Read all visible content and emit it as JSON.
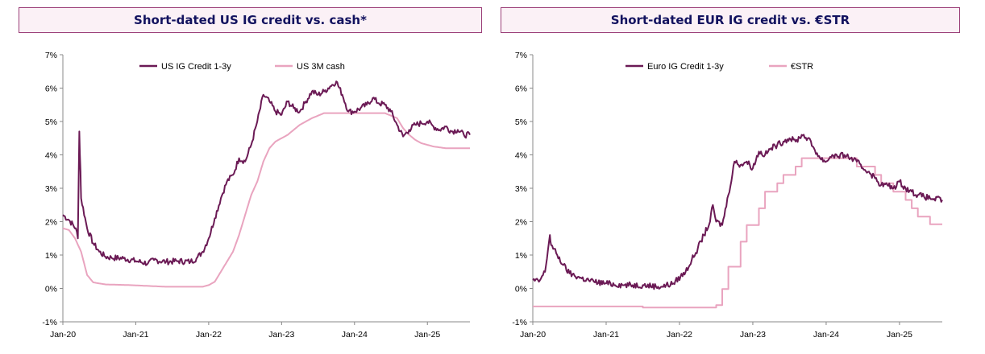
{
  "chart_data": [
    {
      "type": "line",
      "title": "Short-dated US IG credit vs. cash*",
      "xlabel": "",
      "ylabel": "",
      "ylim": [
        -0.01,
        0.07
      ],
      "y_ticks": [
        "7%",
        "6%",
        "5%",
        "4%",
        "3%",
        "2%",
        "1%",
        "0%",
        "-1%"
      ],
      "x_ticks": [
        "Jan-20",
        "Jan-21",
        "Jan-22",
        "Jan-23",
        "Jan-24",
        "Jan-25"
      ],
      "xlim": [
        "2020-01",
        "2025-08"
      ],
      "legend_position": "top-center",
      "grid": false,
      "series": [
        {
          "name": "US IG Credit 1-3y",
          "color": "#6b1a55",
          "points": [
            [
              "2020-01",
              2.2
            ],
            [
              "2020-02",
              2.05
            ],
            [
              "2020-03-05",
              1.8
            ],
            [
              "2020-03-15",
              1.5
            ],
            [
              "2020-03-22",
              4.7
            ],
            [
              "2020-03-28",
              3.5
            ],
            [
              "2020-04",
              2.7
            ],
            [
              "2020-05",
              1.8
            ],
            [
              "2020-06",
              1.35
            ],
            [
              "2020-07",
              1.1
            ],
            [
              "2020-08",
              0.95
            ],
            [
              "2020-09",
              0.92
            ],
            [
              "2020-11",
              0.9
            ],
            [
              "2021-01",
              0.82
            ],
            [
              "2021-03",
              0.75
            ],
            [
              "2021-04",
              0.85
            ],
            [
              "2021-06",
              0.8
            ],
            [
              "2021-08",
              0.82
            ],
            [
              "2021-10",
              0.8
            ],
            [
              "2021-11",
              0.9
            ],
            [
              "2021-12",
              1.1
            ],
            [
              "2022-01",
              1.5
            ],
            [
              "2022-02",
              2.1
            ],
            [
              "2022-03",
              2.7
            ],
            [
              "2022-04",
              3.2
            ],
            [
              "2022-05",
              3.4
            ],
            [
              "2022-06",
              3.9
            ],
            [
              "2022-07",
              3.8
            ],
            [
              "2022-08",
              4.3
            ],
            [
              "2022-09",
              5.0
            ],
            [
              "2022-10",
              5.8
            ],
            [
              "2022-11",
              5.6
            ],
            [
              "2022-12",
              5.3
            ],
            [
              "2023-01",
              5.2
            ],
            [
              "2023-02",
              5.6
            ],
            [
              "2023-03",
              5.4
            ],
            [
              "2023-04",
              5.3
            ],
            [
              "2023-05",
              5.6
            ],
            [
              "2023-06",
              5.9
            ],
            [
              "2023-07",
              5.8
            ],
            [
              "2023-08",
              5.9
            ],
            [
              "2023-09",
              6.05
            ],
            [
              "2023-10",
              6.2
            ],
            [
              "2023-11",
              5.8
            ],
            [
              "2023-12",
              5.3
            ],
            [
              "2024-01",
              5.3
            ],
            [
              "2024-02",
              5.4
            ],
            [
              "2024-03",
              5.5
            ],
            [
              "2024-04",
              5.7
            ],
            [
              "2024-05",
              5.55
            ],
            [
              "2024-06",
              5.5
            ],
            [
              "2024-07",
              5.3
            ],
            [
              "2024-08",
              4.9
            ],
            [
              "2024-09",
              4.55
            ],
            [
              "2024-10",
              4.75
            ],
            [
              "2024-11",
              4.9
            ],
            [
              "2024-12",
              4.95
            ],
            [
              "2025-01",
              5.0
            ],
            [
              "2025-02",
              4.85
            ],
            [
              "2025-03",
              4.75
            ],
            [
              "2025-04",
              4.85
            ],
            [
              "2025-05",
              4.7
            ],
            [
              "2025-06",
              4.75
            ],
            [
              "2025-07",
              4.6
            ],
            [
              "2025-08",
              4.6
            ]
          ]
        },
        {
          "name": "US 3M cash",
          "color": "#e9a4bf",
          "points": [
            [
              "2020-01",
              1.8
            ],
            [
              "2020-02",
              1.75
            ],
            [
              "2020-03",
              1.5
            ],
            [
              "2020-04",
              1.1
            ],
            [
              "2020-05",
              0.4
            ],
            [
              "2020-06",
              0.18
            ],
            [
              "2020-08",
              0.12
            ],
            [
              "2020-12",
              0.1
            ],
            [
              "2021-06",
              0.05
            ],
            [
              "2021-12",
              0.05
            ],
            [
              "2022-01",
              0.1
            ],
            [
              "2022-02",
              0.2
            ],
            [
              "2022-03",
              0.5
            ],
            [
              "2022-04",
              0.8
            ],
            [
              "2022-05",
              1.1
            ],
            [
              "2022-06",
              1.6
            ],
            [
              "2022-07",
              2.2
            ],
            [
              "2022-08",
              2.8
            ],
            [
              "2022-09",
              3.2
            ],
            [
              "2022-10",
              3.8
            ],
            [
              "2022-11",
              4.2
            ],
            [
              "2022-12",
              4.4
            ],
            [
              "2023-02",
              4.6
            ],
            [
              "2023-04",
              4.9
            ],
            [
              "2023-06",
              5.1
            ],
            [
              "2023-08",
              5.25
            ],
            [
              "2024-01",
              5.25
            ],
            [
              "2024-06",
              5.25
            ],
            [
              "2024-08",
              5.1
            ],
            [
              "2024-09",
              4.8
            ],
            [
              "2024-10",
              4.6
            ],
            [
              "2024-11",
              4.45
            ],
            [
              "2024-12",
              4.35
            ],
            [
              "2025-02",
              4.25
            ],
            [
              "2025-04",
              4.2
            ],
            [
              "2025-08",
              4.2
            ]
          ]
        }
      ]
    },
    {
      "type": "line",
      "title": "Short-dated EUR IG credit vs. €STR",
      "xlabel": "",
      "ylabel": "",
      "ylim": [
        -0.01,
        0.07
      ],
      "y_ticks": [
        "7%",
        "6%",
        "5%",
        "4%",
        "3%",
        "2%",
        "1%",
        "0%",
        "-1%"
      ],
      "x_ticks": [
        "Jan-20",
        "Jan-21",
        "Jan-22",
        "Jan-23",
        "Jan-24",
        "Jan-25"
      ],
      "xlim": [
        "2020-01",
        "2025-08"
      ],
      "legend_position": "top-center",
      "grid": false,
      "series": [
        {
          "name": "Euro IG Credit 1-3y",
          "color": "#6b1a55",
          "points": [
            [
              "2020-01",
              0.25
            ],
            [
              "2020-02",
              0.2
            ],
            [
              "2020-03",
              0.5
            ],
            [
              "2020-03-25",
              1.6
            ],
            [
              "2020-04",
              1.3
            ],
            [
              "2020-05",
              1.0
            ],
            [
              "2020-06",
              0.7
            ],
            [
              "2020-07",
              0.45
            ],
            [
              "2020-09",
              0.3
            ],
            [
              "2020-11",
              0.2
            ],
            [
              "2021-01",
              0.15
            ],
            [
              "2021-04",
              0.1
            ],
            [
              "2021-07",
              0.1
            ],
            [
              "2021-10",
              0.05
            ],
            [
              "2021-12",
              0.15
            ],
            [
              "2022-02",
              0.5
            ],
            [
              "2022-04",
              1.2
            ],
            [
              "2022-06",
              2.0
            ],
            [
              "2022-06-15",
              2.5
            ],
            [
              "2022-07",
              2.0
            ],
            [
              "2022-08",
              1.9
            ],
            [
              "2022-09",
              2.8
            ],
            [
              "2022-10",
              3.8
            ],
            [
              "2022-11",
              3.7
            ],
            [
              "2022-12",
              3.8
            ],
            [
              "2023-01",
              3.6
            ],
            [
              "2023-02",
              4.1
            ],
            [
              "2023-03",
              4.0
            ],
            [
              "2023-04",
              4.2
            ],
            [
              "2023-05",
              4.3
            ],
            [
              "2023-06",
              4.4
            ],
            [
              "2023-07",
              4.5
            ],
            [
              "2023-08",
              4.4
            ],
            [
              "2023-09",
              4.6
            ],
            [
              "2023-10",
              4.5
            ],
            [
              "2023-11",
              4.2
            ],
            [
              "2023-12",
              3.9
            ],
            [
              "2024-01",
              3.8
            ],
            [
              "2024-02",
              4.0
            ],
            [
              "2024-03",
              3.95
            ],
            [
              "2024-04",
              4.0
            ],
            [
              "2024-05",
              3.9
            ],
            [
              "2024-06",
              3.8
            ],
            [
              "2024-07",
              3.6
            ],
            [
              "2024-08",
              3.5
            ],
            [
              "2024-09",
              3.3
            ],
            [
              "2024-10",
              3.1
            ],
            [
              "2024-11",
              3.1
            ],
            [
              "2024-12",
              3.0
            ],
            [
              "2025-01",
              3.2
            ],
            [
              "2025-02",
              3.0
            ],
            [
              "2025-03",
              2.9
            ],
            [
              "2025-04",
              2.8
            ],
            [
              "2025-05",
              2.75
            ],
            [
              "2025-06",
              2.7
            ],
            [
              "2025-08",
              2.65
            ]
          ]
        },
        {
          "name": "€STR",
          "color": "#e9a4bf",
          "step": true,
          "points": [
            [
              "2020-01",
              -0.54
            ],
            [
              "2021-07",
              -0.57
            ],
            [
              "2022-07",
              -0.5
            ],
            [
              "2022-08",
              -0.02
            ],
            [
              "2022-09",
              0.65
            ],
            [
              "2022-11",
              1.4
            ],
            [
              "2022-12",
              1.9
            ],
            [
              "2023-02",
              2.4
            ],
            [
              "2023-03",
              2.9
            ],
            [
              "2023-05",
              3.15
            ],
            [
              "2023-06",
              3.4
            ],
            [
              "2023-08",
              3.65
            ],
            [
              "2023-09",
              3.9
            ],
            [
              "2024-06",
              3.65
            ],
            [
              "2024-09",
              3.4
            ],
            [
              "2024-10",
              3.15
            ],
            [
              "2024-12",
              2.9
            ],
            [
              "2025-02",
              2.65
            ],
            [
              "2025-03",
              2.4
            ],
            [
              "2025-04",
              2.15
            ],
            [
              "2025-06",
              1.92
            ],
            [
              "2025-08",
              1.92
            ]
          ]
        }
      ]
    }
  ]
}
